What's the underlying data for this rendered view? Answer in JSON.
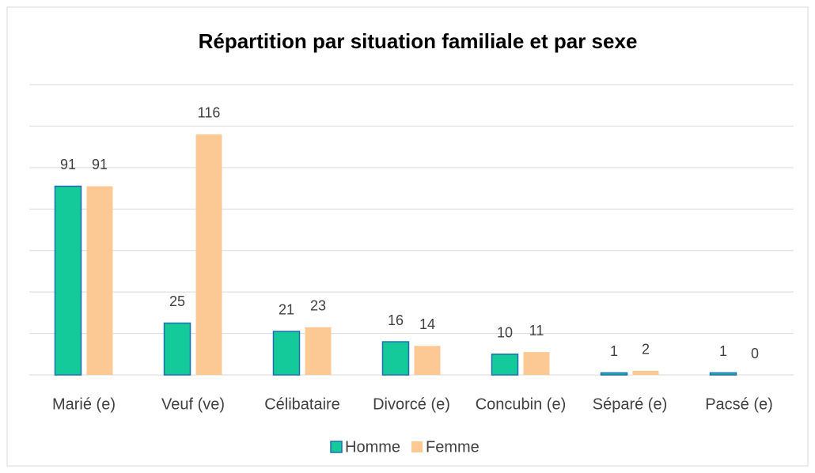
{
  "chart_data": {
    "type": "bar",
    "title": "Répartition par situation familiale et par sexe",
    "categories": [
      "Marié (e)",
      "Veuf (ve)",
      "Célibataire",
      "Divorcé (e)",
      "Concubin (e)",
      "Séparé (e)",
      "Pacsé (e)"
    ],
    "series": [
      {
        "name": "Homme",
        "color": "#14c99a",
        "values": [
          91,
          25,
          21,
          16,
          10,
          1,
          1
        ]
      },
      {
        "name": "Femme",
        "color": "#fcc995",
        "values": [
          91,
          116,
          23,
          14,
          11,
          2,
          0
        ]
      }
    ],
    "ylim": [
      0,
      140
    ],
    "yticks": [
      0,
      20,
      40,
      60,
      80,
      100,
      120,
      140
    ],
    "grid": true,
    "legend": "bottom"
  }
}
